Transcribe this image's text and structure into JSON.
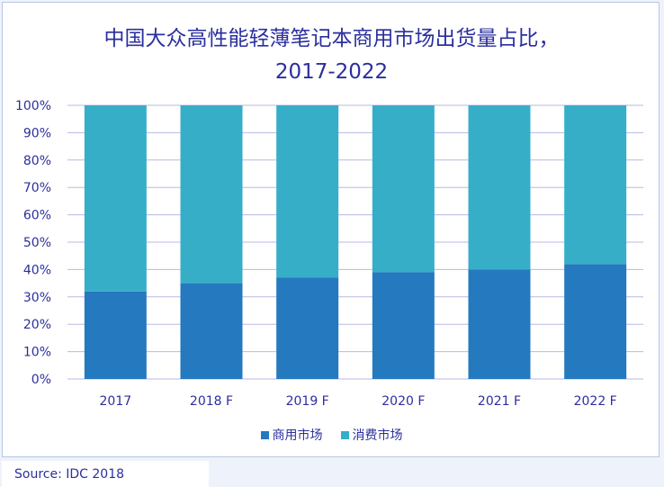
{
  "chart_data": {
    "type": "bar",
    "stacked": true,
    "title": "中国大众高性能轻薄笔记本商用市场出货量占比，\n2017-2022",
    "categories": [
      "2017",
      "2018 F",
      "2019 F",
      "2020 F",
      "2021 F",
      "2022 F"
    ],
    "series": [
      {
        "name": "商用市场",
        "values": [
          32,
          35,
          37,
          39,
          40,
          42
        ],
        "color": "#2579be"
      },
      {
        "name": "消费市场",
        "values": [
          68,
          65,
          63,
          61,
          60,
          58
        ],
        "color": "#36aec8"
      }
    ],
    "ylim": [
      0,
      100
    ],
    "yticks": [
      "0%",
      "10%",
      "20%",
      "30%",
      "40%",
      "50%",
      "60%",
      "70%",
      "80%",
      "90%",
      "100%"
    ],
    "grid": true,
    "legend_position": "bottom"
  },
  "source": "Source: IDC 2018",
  "colors": {
    "text": "#2b2f9e",
    "grid": "#b7b9e4"
  }
}
